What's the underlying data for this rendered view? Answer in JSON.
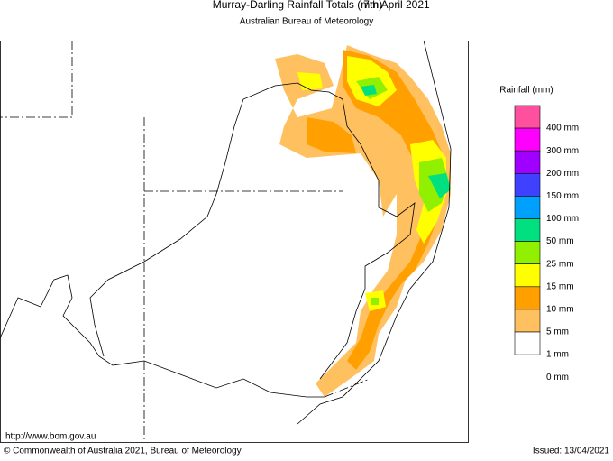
{
  "header": {
    "title": "Murray-Darling Rainfall Totals (mm)",
    "date": "7th April 2021",
    "subtitle": "Australian Bureau of Meteorology"
  },
  "legend": {
    "title": "Rainfall (mm)",
    "labels": [
      "400 mm",
      "300 mm",
      "200 mm",
      "150 mm",
      "100 mm",
      "50 mm",
      "25 mm",
      "15 mm",
      "10 mm",
      "5 mm",
      "1 mm",
      "0 mm"
    ],
    "colors": [
      "#ff50a0",
      "#ff00ff",
      "#a000ff",
      "#4040ff",
      "#00a0ff",
      "#00e080",
      "#90f000",
      "#ffff00",
      "#ffa000",
      "#ffc060",
      "#ffffff"
    ]
  },
  "footer": {
    "url": "http://www.bom.gov.au",
    "copyright": "© Commonwealth of Australia 2021, Bureau of Meteorology",
    "issued": "Issued: 13/04/2021"
  }
}
